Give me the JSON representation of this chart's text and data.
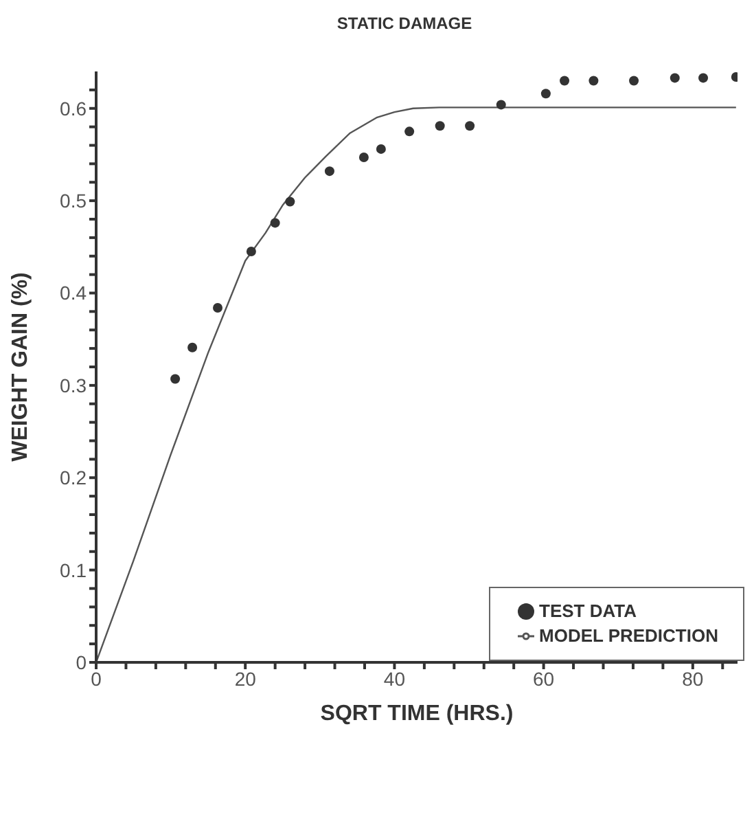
{
  "chart_data": {
    "type": "scatter",
    "title": "STATIC DAMAGE",
    "xlabel": "SQRT TIME (HRS.)",
    "ylabel": "WEIGHT GAIN (%)",
    "xlim": [
      0,
      86
    ],
    "ylim": [
      0,
      0.64
    ],
    "xticks": [
      0,
      {
        "value": 4,
        "label": null
      },
      {
        "value": 8,
        "label": null
      },
      {
        "value": 12,
        "label": null
      },
      {
        "value": 16,
        "label": null
      },
      20,
      {
        "value": 24,
        "label": null
      },
      {
        "value": 28,
        "label": null
      },
      {
        "value": 32,
        "label": null
      },
      {
        "value": 36,
        "label": null
      },
      40,
      {
        "value": 44,
        "label": null
      },
      {
        "value": 48,
        "label": null
      },
      {
        "value": 52,
        "label": null
      },
      {
        "value": 56,
        "label": null
      },
      60,
      {
        "value": 64,
        "label": null
      },
      {
        "value": 68,
        "label": null
      },
      {
        "value": 72,
        "label": null
      },
      {
        "value": 76,
        "label": null
      },
      80,
      {
        "value": 84,
        "label": null
      }
    ],
    "yticks": [
      0,
      {
        "value": 0.02,
        "label": null
      },
      {
        "value": 0.04,
        "label": null
      },
      {
        "value": 0.06,
        "label": null
      },
      {
        "value": 0.08,
        "label": null
      },
      0.1,
      {
        "value": 0.12,
        "label": null
      },
      {
        "value": 0.14,
        "label": null
      },
      {
        "value": 0.16,
        "label": null
      },
      {
        "value": 0.18,
        "label": null
      },
      0.2,
      {
        "value": 0.22,
        "label": null
      },
      {
        "value": 0.24,
        "label": null
      },
      {
        "value": 0.26,
        "label": null
      },
      {
        "value": 0.28,
        "label": null
      },
      0.3,
      {
        "value": 0.32,
        "label": null
      },
      {
        "value": 0.34,
        "label": null
      },
      {
        "value": 0.36,
        "label": null
      },
      {
        "value": 0.38,
        "label": null
      },
      0.4,
      {
        "value": 0.42,
        "label": null
      },
      {
        "value": 0.44,
        "label": null
      },
      {
        "value": 0.46,
        "label": null
      },
      {
        "value": 0.48,
        "label": null
      },
      0.5,
      {
        "value": 0.52,
        "label": null
      },
      {
        "value": 0.54,
        "label": null
      },
      {
        "value": 0.56,
        "label": null
      },
      {
        "value": 0.58,
        "label": null
      },
      0.6,
      {
        "value": 0.62,
        "label": null
      }
    ],
    "grid": false,
    "legend": "bottom right",
    "series": [
      {
        "name": "TEST DATA",
        "type": "scatter",
        "marker": "circle",
        "color": "#333333",
        "x": [
          10.6,
          12.9,
          16.3,
          20.8,
          24.0,
          26.0,
          31.3,
          35.9,
          38.2,
          42.0,
          46.1,
          50.1,
          54.3,
          60.3,
          62.8,
          66.7,
          72.1,
          77.6,
          81.4,
          85.8
        ],
        "values": [
          0.307,
          0.341,
          0.384,
          0.445,
          0.476,
          0.499,
          0.532,
          0.547,
          0.556,
          0.575,
          0.581,
          0.581,
          0.604,
          0.616,
          0.63,
          0.63,
          0.63,
          0.633,
          0.633,
          0.634
        ]
      },
      {
        "name": "MODEL PREDICTION",
        "type": "line",
        "marker": "none",
        "line_style": "solid",
        "color": "#555555",
        "x": [
          0,
          5,
          10,
          15,
          20,
          22.7,
          25,
          28,
          30.8,
          34,
          37.6,
          40,
          42.5,
          46,
          50,
          60,
          70,
          80,
          85.8
        ],
        "values": [
          0,
          0.11,
          0.225,
          0.335,
          0.435,
          0.465,
          0.495,
          0.525,
          0.548,
          0.573,
          0.59,
          0.596,
          0.6,
          0.601,
          0.601,
          0.601,
          0.601,
          0.601,
          0.601
        ]
      }
    ]
  }
}
